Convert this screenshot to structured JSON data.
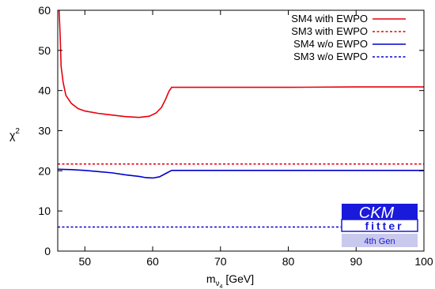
{
  "chart_data": {
    "type": "line",
    "xlabel_main": "m",
    "xlabel_sub": "ν",
    "xlabel_subsub": "4",
    "xlabel_unit": " [GeV]",
    "ylabel_main": "χ",
    "ylabel_sup": "2",
    "xlim": [
      46,
      100
    ],
    "ylim": [
      0,
      60
    ],
    "xticks": [
      50,
      60,
      70,
      80,
      90,
      100
    ],
    "yticks": [
      0,
      10,
      20,
      30,
      40,
      50,
      60
    ],
    "grid": false,
    "legend_position": "top-right",
    "series": [
      {
        "name": "SM4 with EWPO",
        "color": "#e8000b",
        "dash": "solid",
        "x": [
          46.2,
          46.35,
          46.5,
          46.8,
          47.2,
          48.0,
          49.0,
          50.0,
          52.0,
          54.0,
          56.0,
          58.0,
          59.5,
          60.5,
          61.3,
          61.9,
          62.4,
          62.8,
          65,
          70,
          80,
          90,
          100
        ],
        "y": [
          60,
          54,
          46,
          42,
          38.8,
          36.8,
          35.5,
          34.9,
          34.3,
          33.9,
          33.5,
          33.3,
          33.6,
          34.4,
          35.8,
          37.8,
          39.8,
          40.8,
          40.8,
          40.8,
          40.8,
          40.9,
          40.9
        ]
      },
      {
        "name": "SM3 with EWPO",
        "color": "#e8000b",
        "dash": "dashed",
        "x": [
          46,
          100
        ],
        "y": [
          21.7,
          21.7
        ]
      },
      {
        "name": "SM4 w/o EWPO",
        "color": "#0000cc",
        "dash": "solid",
        "x": [
          46,
          48,
          50,
          52,
          54,
          56,
          58,
          59,
          60,
          61,
          62,
          62.8,
          65,
          70,
          80,
          90,
          100
        ],
        "y": [
          20.4,
          20.3,
          20.1,
          19.8,
          19.5,
          19.0,
          18.6,
          18.3,
          18.2,
          18.5,
          19.4,
          20.1,
          20.1,
          20.1,
          20.1,
          20.1,
          20.1
        ]
      },
      {
        "name": "SM3 w/o EWPO",
        "color": "#0000cc",
        "dash": "dashed",
        "x": [
          46,
          87.8
        ],
        "y": [
          6.0,
          6.0
        ]
      }
    ]
  },
  "logo": {
    "line1": "CKM",
    "line2": "fitter",
    "line3": "4th Gen"
  }
}
